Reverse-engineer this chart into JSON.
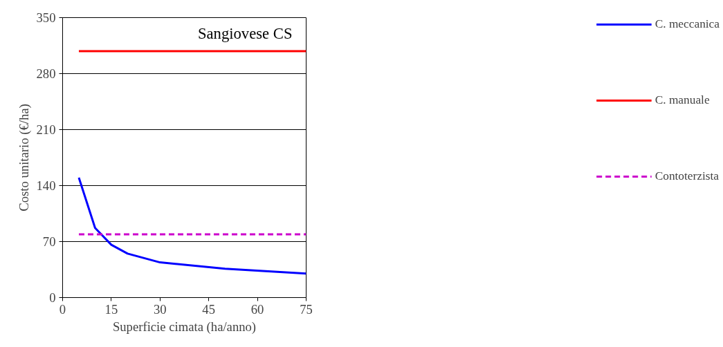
{
  "chart_data": {
    "type": "line",
    "title": "Sangiovese CS",
    "xlabel": "Superficie cimata (ha/anno)",
    "ylabel": "Costo unitario (€/ha)",
    "xlim": [
      0,
      75
    ],
    "xticks": [
      0,
      15,
      30,
      45,
      60,
      75
    ],
    "ylim": [
      0,
      350
    ],
    "yticks": [
      0,
      70,
      140,
      210,
      280,
      350
    ],
    "grid": "y",
    "legend": "right",
    "marker": "none",
    "series": [
      {
        "name": "C. meccanica",
        "color": "#0000ff",
        "line_style": "solid",
        "x": [
          5,
          10,
          15,
          20,
          30,
          50,
          75
        ],
        "values": [
          150,
          87,
          66,
          55,
          44,
          36,
          30
        ]
      },
      {
        "name": "C. manuale",
        "color": "#ff0000",
        "line_style": "solid",
        "x": [
          5,
          75
        ],
        "values": [
          308,
          308
        ]
      },
      {
        "name": "Contoterzista",
        "color": "#cc00cc",
        "line_style": "dashed",
        "x": [
          5,
          75
        ],
        "values": [
          79,
          79
        ]
      }
    ]
  }
}
